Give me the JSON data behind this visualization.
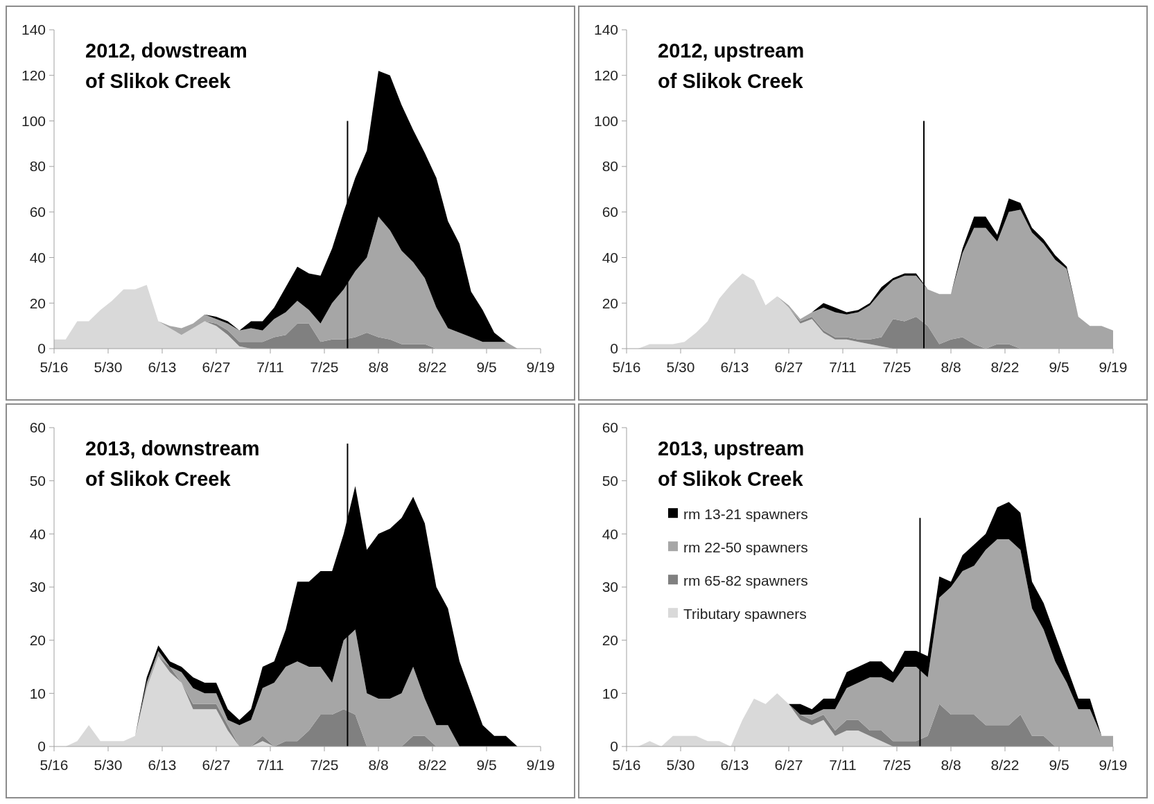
{
  "chart_data": [
    {
      "type": "area",
      "title": "2012, dowstream of Slikok Creek",
      "stacked": true,
      "ylim": [
        0,
        140
      ],
      "yticks": [
        0,
        20,
        40,
        60,
        80,
        100,
        120,
        140
      ],
      "xlim": [
        "--05-16",
        "--09-19"
      ],
      "xticks": [
        {
          "value": "--05-16",
          "label": "5/16"
        },
        {
          "value": "--05-30",
          "label": "5/30"
        },
        {
          "value": "--06-13",
          "label": "6/13"
        },
        {
          "value": "--06-27",
          "label": "6/27"
        },
        {
          "value": "--07-11",
          "label": "7/11"
        },
        {
          "value": "--07-25",
          "label": "7/25"
        },
        {
          "value": "--08-08",
          "label": "8/8"
        },
        {
          "value": "--08-22",
          "label": "8/22"
        },
        {
          "value": "--09-05",
          "label": "9/5"
        },
        {
          "value": "--09-19",
          "label": "9/19"
        }
      ],
      "x": [
        "--05-16",
        "--05-19",
        "--05-22",
        "--05-25",
        "--05-28",
        "--05-31",
        "--06-03",
        "--06-06",
        "--06-09",
        "--06-12",
        "--06-15",
        "--06-18",
        "--06-21",
        "--06-24",
        "--06-27",
        "--06-30",
        "--07-03",
        "--07-06",
        "--07-09",
        "--07-12",
        "--07-15",
        "--07-18",
        "--07-21",
        "--07-24",
        "--07-27",
        "--07-30",
        "--08-02",
        "--08-05",
        "--08-08",
        "--08-11",
        "--08-14",
        "--08-17",
        "--08-20",
        "--08-23",
        "--08-26",
        "--08-29",
        "--09-01",
        "--09-04",
        "--09-07",
        "--09-10",
        "--09-13"
      ],
      "series": [
        {
          "color": "#d9d9d9",
          "values": [
            4,
            4,
            12,
            12,
            17,
            21,
            26,
            26,
            28,
            12,
            9,
            6,
            9,
            12,
            10,
            6,
            1,
            0,
            null,
            null,
            null,
            null,
            null,
            null,
            null,
            null,
            null,
            null,
            null,
            null,
            null,
            null,
            null,
            null,
            null,
            null,
            null,
            null,
            null,
            null,
            null
          ]
        },
        {
          "color": "#808080",
          "values": [
            null,
            null,
            null,
            null,
            null,
            null,
            null,
            null,
            null,
            null,
            null,
            null,
            null,
            0,
            1,
            2,
            2,
            3,
            3,
            5,
            6,
            11,
            11,
            3,
            4,
            4,
            5,
            7,
            5,
            4,
            2,
            2,
            2,
            0,
            null,
            null,
            null,
            null,
            null,
            null,
            null
          ]
        },
        {
          "color": "#a6a6a6",
          "values": [
            null,
            null,
            null,
            null,
            null,
            null,
            null,
            null,
            null,
            0,
            1,
            3,
            2,
            3,
            2,
            3,
            5,
            6,
            5,
            8,
            10,
            10,
            6,
            8,
            16,
            22,
            29,
            33,
            53,
            48,
            41,
            36,
            29,
            18,
            9,
            7,
            5,
            3,
            3,
            3,
            0
          ]
        },
        {
          "color": "#000000",
          "values": [
            null,
            null,
            null,
            null,
            null,
            null,
            null,
            null,
            null,
            null,
            null,
            null,
            null,
            0,
            1,
            1,
            0,
            3,
            4,
            5,
            11,
            15,
            16,
            21,
            24,
            34,
            41,
            47,
            64,
            68,
            64,
            58,
            55,
            57,
            47,
            39,
            20,
            14,
            4,
            0,
            null
          ]
        },
        {
          "type": "line",
          "color": "#000000",
          "x": [
            "--07-31",
            "--07-31"
          ],
          "values": [
            0,
            100
          ]
        }
      ]
    },
    {
      "type": "area",
      "title": "2012, upstream of Slikok Creek",
      "stacked": true,
      "ylim": [
        0,
        140
      ],
      "yticks": [
        0,
        20,
        40,
        60,
        80,
        100,
        120,
        140
      ],
      "xlim": [
        "--05-16",
        "--09-19"
      ],
      "xticks": [
        {
          "value": "--05-16",
          "label": "5/16"
        },
        {
          "value": "--05-30",
          "label": "5/30"
        },
        {
          "value": "--06-13",
          "label": "6/13"
        },
        {
          "value": "--06-27",
          "label": "6/27"
        },
        {
          "value": "--07-11",
          "label": "7/11"
        },
        {
          "value": "--07-25",
          "label": "7/25"
        },
        {
          "value": "--08-08",
          "label": "8/8"
        },
        {
          "value": "--08-22",
          "label": "8/22"
        },
        {
          "value": "--09-05",
          "label": "9/5"
        },
        {
          "value": "--09-19",
          "label": "9/19"
        }
      ],
      "x": [
        "--05-19",
        "--05-22",
        "--05-25",
        "--05-28",
        "--05-31",
        "--06-03",
        "--06-06",
        "--06-09",
        "--06-12",
        "--06-15",
        "--06-18",
        "--06-21",
        "--06-24",
        "--06-27",
        "--06-30",
        "--07-03",
        "--07-06",
        "--07-09",
        "--07-12",
        "--07-15",
        "--07-18",
        "--07-21",
        "--07-24",
        "--07-27",
        "--07-30",
        "--08-02",
        "--08-05",
        "--08-08",
        "--08-11",
        "--08-14",
        "--08-17",
        "--08-20",
        "--08-23",
        "--08-26",
        "--08-29",
        "--09-01",
        "--09-04",
        "--09-07",
        "--09-10",
        "--09-13",
        "--09-16",
        "--09-19"
      ],
      "series": [
        {
          "color": "#d9d9d9",
          "values": [
            0,
            2,
            2,
            2,
            3,
            7,
            12,
            22,
            28,
            33,
            30,
            19,
            23,
            18,
            11,
            13,
            7,
            4,
            4,
            3,
            2,
            1,
            0,
            null,
            null,
            null,
            null,
            null,
            null,
            null,
            null,
            null,
            null,
            null,
            null,
            null,
            null,
            null,
            null,
            null,
            null,
            null
          ]
        },
        {
          "color": "#808080",
          "values": [
            null,
            null,
            null,
            null,
            null,
            null,
            null,
            null,
            null,
            null,
            null,
            null,
            null,
            0,
            1,
            1,
            1,
            1,
            1,
            1,
            2,
            4,
            13,
            12,
            14,
            10,
            2,
            4,
            5,
            2,
            0,
            2,
            2,
            0,
            null,
            null,
            null,
            null,
            null,
            null,
            null,
            null
          ]
        },
        {
          "color": "#a6a6a6",
          "values": [
            null,
            null,
            null,
            null,
            null,
            null,
            null,
            null,
            null,
            null,
            null,
            null,
            0,
            1,
            1,
            2,
            10,
            11,
            10,
            12,
            15,
            20,
            17,
            20,
            18,
            16,
            22,
            20,
            37,
            51,
            53,
            45,
            58,
            61,
            51,
            46,
            39,
            35,
            14,
            10,
            10,
            8
          ]
        },
        {
          "color": "#000000",
          "values": [
            null,
            null,
            null,
            null,
            null,
            null,
            null,
            null,
            null,
            null,
            null,
            null,
            null,
            null,
            null,
            0,
            2,
            2,
            1,
            1,
            1,
            2,
            1,
            1,
            1,
            0,
            0,
            0,
            2,
            5,
            5,
            3,
            6,
            3,
            2,
            2,
            2,
            1,
            0,
            null,
            null,
            null
          ]
        },
        {
          "type": "line",
          "color": "#000000",
          "x": [
            "--08-01",
            "--08-01"
          ],
          "values": [
            0,
            100
          ]
        }
      ]
    },
    {
      "type": "area",
      "title": "2013, downstream of Slikok Creek",
      "stacked": true,
      "ylim": [
        0,
        60
      ],
      "yticks": [
        0,
        10,
        20,
        30,
        40,
        50,
        60
      ],
      "xlim": [
        "--05-16",
        "--09-19"
      ],
      "xticks": [
        {
          "value": "--05-16",
          "label": "5/16"
        },
        {
          "value": "--05-30",
          "label": "5/30"
        },
        {
          "value": "--06-13",
          "label": "6/13"
        },
        {
          "value": "--06-27",
          "label": "6/27"
        },
        {
          "value": "--07-11",
          "label": "7/11"
        },
        {
          "value": "--07-25",
          "label": "7/25"
        },
        {
          "value": "--08-08",
          "label": "8/8"
        },
        {
          "value": "--08-22",
          "label": "8/22"
        },
        {
          "value": "--09-05",
          "label": "9/5"
        },
        {
          "value": "--09-19",
          "label": "9/19"
        }
      ],
      "x": [
        "--05-19",
        "--05-22",
        "--05-25",
        "--05-28",
        "--05-31",
        "--06-03",
        "--06-06",
        "--06-09",
        "--06-12",
        "--06-15",
        "--06-18",
        "--06-21",
        "--06-24",
        "--06-27",
        "--06-30",
        "--07-03",
        "--07-06",
        "--07-09",
        "--07-12",
        "--07-15",
        "--07-18",
        "--07-21",
        "--07-24",
        "--07-27",
        "--07-30",
        "--08-02",
        "--08-05",
        "--08-08",
        "--08-11",
        "--08-14",
        "--08-17",
        "--08-20",
        "--08-23",
        "--08-26",
        "--08-29",
        "--09-01",
        "--09-04",
        "--09-07",
        "--09-10",
        "--09-13"
      ],
      "series": [
        {
          "color": "#d9d9d9",
          "values": [
            0,
            1,
            4,
            1,
            1,
            1,
            2,
            11,
            17,
            14,
            12,
            7,
            7,
            7,
            3,
            0,
            0,
            1,
            0,
            null,
            null,
            null,
            null,
            null,
            null,
            null,
            null,
            null,
            null,
            null,
            null,
            null,
            null,
            null,
            null,
            null,
            null,
            null,
            null,
            null
          ]
        },
        {
          "color": "#808080",
          "values": [
            null,
            null,
            null,
            null,
            null,
            null,
            null,
            null,
            0,
            1,
            0,
            1,
            1,
            1,
            1,
            0,
            0,
            1,
            0,
            1,
            1,
            3,
            6,
            6,
            7,
            6,
            0,
            0,
            0,
            0,
            2,
            2,
            0,
            null,
            null,
            null,
            null,
            null,
            null,
            null
          ]
        },
        {
          "color": "#a6a6a6",
          "values": [
            null,
            null,
            null,
            null,
            null,
            null,
            0,
            1,
            1,
            0,
            2,
            3,
            2,
            2,
            1,
            4,
            5,
            9,
            12,
            14,
            15,
            12,
            9,
            6,
            13,
            16,
            10,
            9,
            9,
            10,
            13,
            7,
            4,
            4,
            0,
            null,
            null,
            null,
            null,
            null
          ]
        },
        {
          "color": "#000000",
          "values": [
            null,
            null,
            null,
            null,
            null,
            null,
            0,
            1,
            1,
            1,
            1,
            2,
            2,
            2,
            2,
            1,
            2,
            4,
            4,
            7,
            15,
            16,
            18,
            21,
            20,
            27,
            27,
            31,
            32,
            33,
            32,
            33,
            26,
            22,
            16,
            10,
            4,
            2,
            2,
            0
          ]
        },
        {
          "type": "line",
          "color": "#000000",
          "x": [
            "--07-31",
            "--07-31"
          ],
          "values": [
            0,
            57
          ]
        }
      ]
    },
    {
      "type": "area",
      "title": "2013, upstream of Slikok Creek",
      "stacked": true,
      "legend": "left",
      "ylim": [
        0,
        60
      ],
      "yticks": [
        0,
        10,
        20,
        30,
        40,
        50,
        60
      ],
      "xlim": [
        "--05-16",
        "--09-19"
      ],
      "xticks": [
        {
          "value": "--05-16",
          "label": "5/16"
        },
        {
          "value": "--05-30",
          "label": "5/30"
        },
        {
          "value": "--06-13",
          "label": "6/13"
        },
        {
          "value": "--06-27",
          "label": "6/27"
        },
        {
          "value": "--07-11",
          "label": "7/11"
        },
        {
          "value": "--07-25",
          "label": "7/25"
        },
        {
          "value": "--08-08",
          "label": "8/8"
        },
        {
          "value": "--08-22",
          "label": "8/22"
        },
        {
          "value": "--09-05",
          "label": "9/5"
        },
        {
          "value": "--09-19",
          "label": "9/19"
        }
      ],
      "x": [
        "--05-19",
        "--05-22",
        "--05-25",
        "--05-28",
        "--05-31",
        "--06-03",
        "--06-06",
        "--06-09",
        "--06-12",
        "--06-15",
        "--06-18",
        "--06-21",
        "--06-24",
        "--06-27",
        "--06-30",
        "--07-03",
        "--07-06",
        "--07-09",
        "--07-12",
        "--07-15",
        "--07-18",
        "--07-21",
        "--07-24",
        "--07-27",
        "--07-30",
        "--08-02",
        "--08-05",
        "--08-08",
        "--08-11",
        "--08-14",
        "--08-17",
        "--08-20",
        "--08-23",
        "--08-26",
        "--08-29",
        "--09-01",
        "--09-04",
        "--09-07",
        "--09-10",
        "--09-13",
        "--09-16",
        "--09-19"
      ],
      "series": [
        {
          "name": "Tributary spawners",
          "color": "#d9d9d9",
          "values": [
            0,
            1,
            0,
            2,
            2,
            2,
            1,
            1,
            0,
            5,
            9,
            8,
            10,
            8,
            5,
            4,
            5,
            2,
            3,
            3,
            2,
            1,
            0,
            null,
            null,
            null,
            null,
            null,
            null,
            null,
            null,
            null,
            null,
            null,
            null,
            null,
            null,
            null,
            null,
            null,
            null,
            null
          ]
        },
        {
          "name": "rm 65-82 spawners",
          "color": "#808080",
          "values": [
            null,
            null,
            null,
            null,
            null,
            null,
            null,
            null,
            null,
            null,
            null,
            null,
            null,
            0,
            1,
            1,
            1,
            1,
            2,
            2,
            1,
            2,
            1,
            1,
            1,
            2,
            8,
            6,
            6,
            6,
            4,
            4,
            4,
            6,
            2,
            2,
            0,
            null,
            null,
            null,
            null,
            null
          ]
        },
        {
          "name": "rm 22-50 spawners",
          "color": "#a6a6a6",
          "values": [
            null,
            null,
            null,
            null,
            null,
            null,
            null,
            null,
            null,
            null,
            null,
            null,
            null,
            null,
            0,
            1,
            1,
            4,
            6,
            7,
            10,
            10,
            11,
            14,
            14,
            11,
            20,
            24,
            27,
            28,
            33,
            35,
            35,
            31,
            24,
            20,
            16,
            12,
            7,
            7,
            2,
            2
          ]
        },
        {
          "name": "rm 13-21 spawners",
          "color": "#000000",
          "values": [
            null,
            null,
            null,
            null,
            null,
            null,
            null,
            null,
            null,
            null,
            null,
            null,
            null,
            0,
            2,
            1,
            2,
            2,
            3,
            3,
            3,
            3,
            2,
            3,
            3,
            4,
            4,
            1,
            3,
            4,
            3,
            6,
            7,
            7,
            5,
            5,
            5,
            3,
            2,
            2,
            0,
            null
          ]
        },
        {
          "type": "line",
          "color": "#000000",
          "x": [
            "--07-31",
            "--07-31"
          ],
          "values": [
            0,
            43
          ]
        }
      ]
    }
  ]
}
